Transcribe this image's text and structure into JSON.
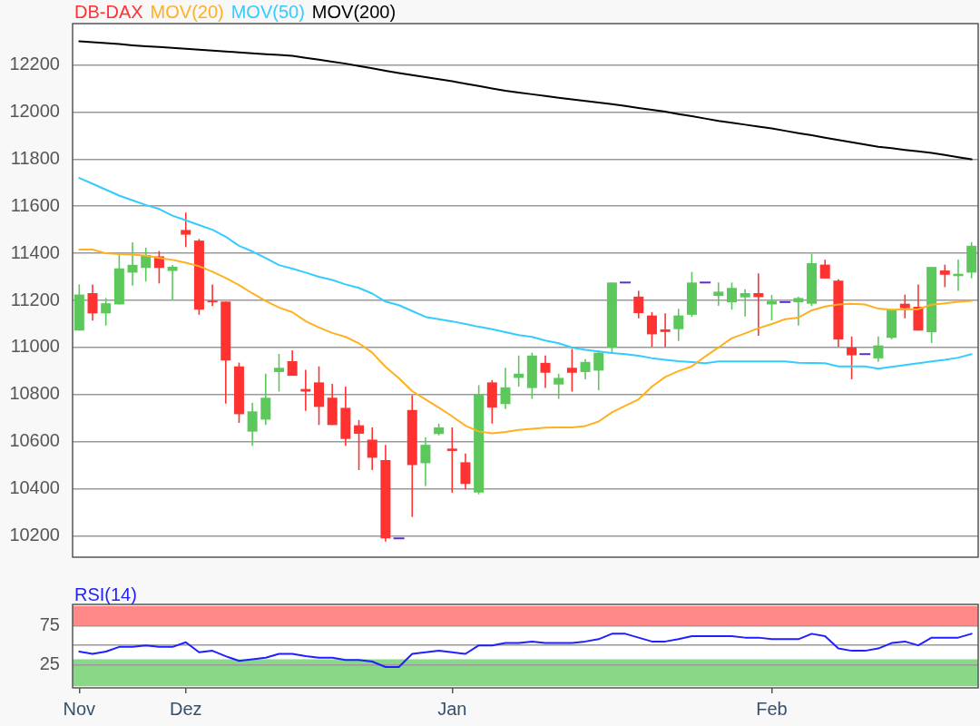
{
  "chart_data": [
    {
      "type": "candlestick",
      "categories": [
        null,
        null,
        null,
        null,
        null,
        null,
        null,
        null,
        null,
        null,
        null,
        null,
        null,
        null,
        null,
        null,
        null,
        null,
        null,
        null,
        null,
        null,
        null,
        null,
        null,
        null,
        null,
        null,
        null,
        null,
        null,
        null,
        null,
        null,
        null,
        null,
        null,
        null,
        null,
        null,
        null,
        null,
        null,
        null,
        null,
        null,
        null,
        null,
        null,
        null,
        null,
        null,
        null,
        null,
        null,
        null,
        null,
        null,
        null,
        null,
        null,
        null,
        null,
        null,
        null,
        null,
        null,
        null
      ],
      "series": [
        {
          "name": "DB-DAX",
          "color": "#ff3232",
          "colors": [
            "#5cc85c",
            "#ff3232",
            "#5cc85c",
            "#5cc85c",
            "#5cc85c",
            "#5cc85c",
            "#ff3232",
            "#5cc85c",
            "#ff3232",
            "#ff3232",
            "#ff3232",
            "#ff3232",
            "#ff3232",
            "#5cc85c",
            "#5cc85c",
            "#5cc85c",
            "#ff3232",
            "#ff3232",
            "#ff3232",
            "#ff3232",
            "#ff3232",
            "#ff3232",
            "#ff3232",
            "#ff3232",
            "#5a2fd0",
            "#ff3232",
            "#5cc85c",
            "#5cc85c",
            "#ff3232",
            "#ff3232",
            "#5cc85c",
            "#ff3232",
            "#5cc85c",
            "#5cc85c",
            "#5cc85c",
            "#ff3232",
            "#5cc85c",
            "#ff3232",
            "#5cc85c",
            "#5cc85c",
            "#5cc85c",
            "#5a2fd0",
            "#ff3232",
            "#ff3232",
            "#ff3232",
            "#5cc85c",
            "#5cc85c",
            "#5a2fd0",
            "#5cc85c",
            "#5cc85c",
            "#5cc85c",
            "#ff3232",
            "#5cc85c",
            "#5a2fd0",
            "#5cc85c",
            "#5cc85c",
            "#ff3232",
            "#ff3232",
            "#ff3232",
            "#5a2fd0",
            "#5cc85c",
            "#5cc85c",
            "#ff3232",
            "#ff3232",
            "#5cc85c",
            "#ff3232",
            "#5cc85c",
            "#5cc85c"
          ],
          "ohlc": [
            [
              11072,
              11268,
              11072,
              11225
            ],
            [
              11231,
              11268,
              11114,
              11145
            ],
            [
              11145,
              11210,
              11093,
              11188
            ],
            [
              11183,
              11399,
              11183,
              11336
            ],
            [
              11318,
              11447,
              11263,
              11351
            ],
            [
              11338,
              11424,
              11280,
              11393
            ],
            [
              11387,
              11410,
              11272,
              11338
            ],
            [
              11325,
              11350,
              11201,
              11343
            ],
            [
              11499,
              11573,
              11426,
              11479
            ],
            [
              11454,
              11461,
              11139,
              11161
            ],
            [
              11199,
              11268,
              11176,
              11192
            ],
            [
              11195,
              11195,
              10762,
              10945
            ],
            [
              10920,
              10936,
              10680,
              10717
            ],
            [
              10643,
              10766,
              10583,
              10729
            ],
            [
              10694,
              10889,
              10671,
              10787
            ],
            [
              10896,
              10973,
              10813,
              10914
            ],
            [
              10942,
              10988,
              10880,
              10880
            ],
            [
              10824,
              10905,
              10731,
              10813
            ],
            [
              10852,
              10920,
              10671,
              10748
            ],
            [
              10787,
              10846,
              10671,
              10671
            ],
            [
              10744,
              10834,
              10583,
              10612
            ],
            [
              10670,
              10692,
              10480,
              10634
            ],
            [
              10609,
              10661,
              10480,
              10532
            ],
            [
              10522,
              10587,
              10176,
              10190
            ],
            [
              10190,
              10190,
              10190,
              10190
            ],
            [
              10735,
              10797,
              10281,
              10501
            ],
            [
              10509,
              10618,
              10412,
              10587
            ],
            [
              10633,
              10677,
              10627,
              10661
            ],
            [
              10571,
              10661,
              10384,
              10561
            ],
            [
              10513,
              10550,
              10398,
              10421
            ],
            [
              10384,
              10840,
              10377,
              10801
            ],
            [
              10852,
              10862,
              10677,
              10745
            ],
            [
              10760,
              10914,
              10739,
              10831
            ],
            [
              10871,
              10966,
              10834,
              10889
            ],
            [
              10828,
              10978,
              10782,
              10966
            ],
            [
              10935,
              10966,
              10828,
              10893
            ],
            [
              10843,
              10889,
              10782,
              10871
            ],
            [
              10914,
              10994,
              10813,
              10893
            ],
            [
              10896,
              10951,
              10865,
              10939
            ],
            [
              10902,
              10988,
              10819,
              10978
            ],
            [
              11000,
              11276,
              10973,
              11276
            ],
            [
              11276,
              11276,
              11276,
              11276
            ],
            [
              11216,
              11241,
              11124,
              11146
            ],
            [
              11136,
              11151,
              11003,
              11056
            ],
            [
              11077,
              11145,
              11003,
              11066
            ],
            [
              11078,
              11164,
              11028,
              11136
            ],
            [
              11139,
              11321,
              11130,
              11276
            ],
            [
              11276,
              11276,
              11276,
              11276
            ],
            [
              11219,
              11276,
              11177,
              11237
            ],
            [
              11192,
              11276,
              11161,
              11253
            ],
            [
              11213,
              11247,
              11132,
              11231
            ],
            [
              11231,
              11315,
              11050,
              11214
            ],
            [
              11183,
              11223,
              11115,
              11198
            ],
            [
              11193,
              11193,
              11193,
              11193
            ],
            [
              11192,
              11216,
              11093,
              11210
            ],
            [
              11186,
              11398,
              11176,
              11358
            ],
            [
              11352,
              11373,
              11293,
              11293
            ],
            [
              11284,
              11290,
              11003,
              11034
            ],
            [
              11000,
              11047,
              10865,
              10967
            ],
            [
              10972,
              10972,
              10972,
              10972
            ],
            [
              10954,
              11047,
              10939,
              11009
            ],
            [
              11041,
              11161,
              11035,
              11161
            ],
            [
              11186,
              11225,
              11124,
              11167
            ],
            [
              11173,
              11268,
              11072,
              11072
            ],
            [
              11065,
              11342,
              11019,
              11342
            ],
            [
              11327,
              11352,
              11256,
              11309
            ],
            [
              11303,
              11373,
              11241,
              11313
            ],
            [
              11318,
              11447,
              11294,
              11432
            ]
          ]
        },
        {
          "type": "line",
          "name": "MOV(20)",
          "color": "#ffb020",
          "values": [
            11416,
            11416,
            11400,
            11397,
            11395,
            11390,
            11380,
            11372,
            11360,
            11345,
            11322,
            11295,
            11265,
            11230,
            11198,
            11170,
            11150,
            11112,
            11085,
            11062,
            11045,
            11018,
            10978,
            10918,
            10870,
            10815,
            10780,
            10745,
            10708,
            10668,
            10644,
            10636,
            10642,
            10650,
            10655,
            10660,
            10661,
            10661,
            10667,
            10686,
            10725,
            10753,
            10780,
            10834,
            10875,
            10900,
            10920,
            10962,
            11000,
            11040,
            11060,
            11082,
            11100,
            11120,
            11127,
            11158,
            11174,
            11183,
            11186,
            11183,
            11165,
            11161,
            11162,
            11163,
            11182,
            11188,
            11194,
            11198
          ]
        },
        {
          "type": "line",
          "name": "MOV(50)",
          "color": "#33ccff",
          "values": [
            11720,
            11695,
            11670,
            11645,
            11625,
            11605,
            11588,
            11560,
            11540,
            11520,
            11500,
            11470,
            11432,
            11408,
            11380,
            11350,
            11335,
            11318,
            11300,
            11287,
            11268,
            11253,
            11229,
            11195,
            11180,
            11155,
            11130,
            11120,
            11111,
            11100,
            11088,
            11078,
            11065,
            11053,
            11045,
            11030,
            11018,
            11000,
            10990,
            10983,
            10977,
            10972,
            10965,
            10955,
            10948,
            10942,
            10938,
            10933,
            10941,
            10941,
            10941,
            10941,
            10941,
            10941,
            10935,
            10934,
            10933,
            10920,
            10920,
            10920,
            10910,
            10918,
            10926,
            10933,
            10941,
            10948,
            10957,
            10972
          ]
        },
        {
          "type": "line",
          "name": "MOV(200)",
          "color": "#000000",
          "values": [
            12300,
            12296,
            12292,
            12288,
            12283,
            12279,
            12276,
            12272,
            12268,
            12264,
            12260,
            12257,
            12253,
            12249,
            12245,
            12242,
            12238,
            12230,
            12222,
            12213,
            12205,
            12195,
            12185,
            12175,
            12165,
            12156,
            12148,
            12139,
            12130,
            12120,
            12110,
            12100,
            12090,
            12082,
            12075,
            12068,
            12060,
            12053,
            12047,
            12040,
            12033,
            12025,
            12017,
            12009,
            12001,
            11991,
            11982,
            11972,
            11962,
            11954,
            11946,
            11938,
            11930,
            11920,
            11910,
            11901,
            11891,
            11881,
            11871,
            11862,
            11852,
            11846,
            11839,
            11833,
            11826,
            11817,
            11808,
            11799
          ]
        }
      ],
      "ylim": [
        10110,
        12375
      ],
      "yticks": [
        10200,
        10400,
        10600,
        10800,
        11000,
        11200,
        11400,
        11600,
        11800,
        12000,
        12200
      ],
      "grid": "y",
      "legend": "top left",
      "tick_labels": "y",
      "marker": "none"
    },
    {
      "type": "line",
      "categories": [
        "Nov",
        null,
        null,
        null,
        null,
        null,
        null,
        null,
        "Dez",
        null,
        null,
        null,
        null,
        null,
        null,
        null,
        null,
        null,
        null,
        null,
        null,
        null,
        null,
        null,
        null,
        null,
        null,
        null,
        "Jan",
        null,
        null,
        null,
        null,
        null,
        null,
        null,
        null,
        null,
        null,
        null,
        null,
        null,
        null,
        null,
        null,
        null,
        null,
        null,
        null,
        null,
        null,
        null,
        "Feb",
        null,
        null,
        null,
        null,
        null,
        null,
        null,
        null,
        null,
        null,
        null,
        null,
        null,
        null,
        null
      ],
      "series": [
        {
          "name": "RSI(14)",
          "color": "#1f1fff",
          "values": [
            42,
            39,
            42,
            48,
            48,
            50,
            48,
            48,
            54,
            41,
            43,
            36,
            30,
            32,
            34,
            39,
            39,
            36,
            34,
            34,
            31,
            31,
            29,
            22,
            22,
            39,
            41,
            43,
            41,
            39,
            50,
            50,
            53,
            53,
            55,
            53,
            53,
            53,
            55,
            58,
            65,
            65,
            60,
            55,
            55,
            58,
            62,
            62,
            62,
            62,
            60,
            60,
            58,
            58,
            58,
            65,
            62,
            46,
            43,
            43,
            46,
            53,
            55,
            50,
            60,
            60,
            60,
            65
          ]
        }
      ],
      "ylim": [
        -5,
        103
      ],
      "yticks": [
        25,
        {
          "value": 50,
          "label": null
        },
        75
      ],
      "bands": [
        {
          "axis": "y",
          "from": 75,
          "to": 101,
          "color": "#ff8888"
        },
        {
          "axis": "y",
          "from": -3,
          "to": 32,
          "color": "#88d888"
        }
      ],
      "grid": "y",
      "legend": "top left",
      "marker": "none"
    }
  ]
}
